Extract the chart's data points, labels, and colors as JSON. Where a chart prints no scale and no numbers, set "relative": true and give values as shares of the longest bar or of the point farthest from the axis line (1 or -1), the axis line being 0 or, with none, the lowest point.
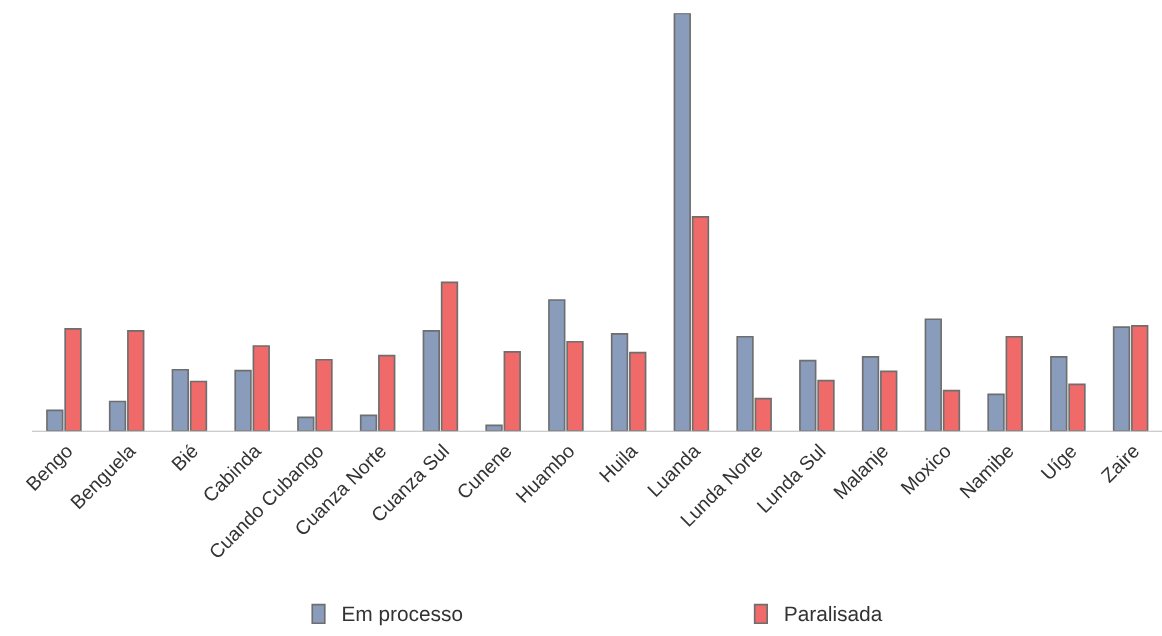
{
  "chart_data": {
    "type": "bar",
    "relative": true,
    "legend": "bottom",
    "grid": false,
    "categories": [
      "Bengo",
      "Benguela",
      "Bié",
      "Cabinda",
      "Cuando Cubango",
      "Cuanza Norte",
      "Cuanza Sul",
      "Cunene",
      "Huambo",
      "Huila",
      "Luanda",
      "Lunda Norte",
      "Lunda Sul",
      "Malanje",
      "Moxico",
      "Namibe",
      "Uíge",
      "Zaire"
    ],
    "series": [
      {
        "name": "Em processo",
        "color": "#8a9cbc",
        "values": [
          0.05,
          0.071,
          0.147,
          0.145,
          0.033,
          0.038,
          0.24,
          0.014,
          0.314,
          0.233,
          1,
          0.226,
          0.169,
          0.178,
          0.268,
          0.088,
          0.178,
          0.249
        ]
      },
      {
        "name": "Paralisada",
        "color": "#f06a6a",
        "values": [
          0.245,
          0.24,
          0.119,
          0.204,
          0.171,
          0.181,
          0.356,
          0.19,
          0.214,
          0.188,
          0.513,
          0.078,
          0.121,
          0.143,
          0.097,
          0.226,
          0.112,
          0.252
        ]
      }
    ]
  }
}
